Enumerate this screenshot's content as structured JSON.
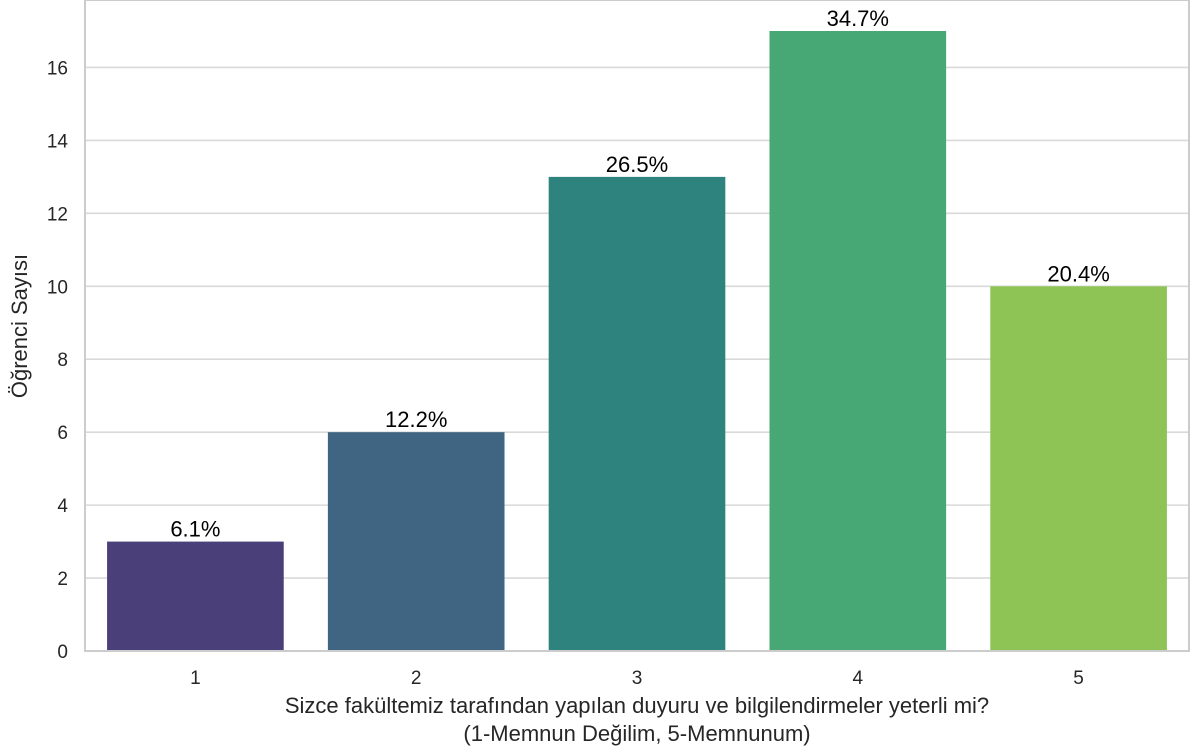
{
  "chart_data": {
    "type": "bar",
    "categories": [
      "1",
      "2",
      "3",
      "4",
      "5"
    ],
    "values": [
      3,
      6,
      13,
      17,
      10
    ],
    "data_labels": [
      "6.1%",
      "12.2%",
      "26.5%",
      "34.7%",
      "20.4%"
    ],
    "colors": [
      "#4a3f78",
      "#3f6582",
      "#2e837e",
      "#47a876",
      "#8ec455"
    ],
    "title": "",
    "xlabel": "Sizce fakültemiz tarafından yapılan duyuru ve bilgilendirmeler yeterli mi?",
    "xlabel_line2": "(1-Memnun Değilim, 5-Memnunum)",
    "ylabel": "Öğrenci Sayısı",
    "ylim": [
      0,
      17.85
    ],
    "yticks": [
      "0",
      "2",
      "4",
      "6",
      "8",
      "10",
      "12",
      "14",
      "16"
    ],
    "grid": true,
    "grid_axis": "y",
    "legend": "none"
  }
}
